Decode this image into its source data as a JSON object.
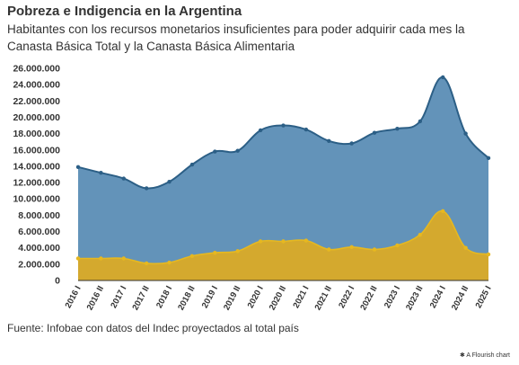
{
  "title": "Pobreza e Indigencia en la Argentina",
  "subtitle": "Habitantes con los recursos monetarios insuficientes para poder adquirir cada mes la Canasta Básica Total y la Canasta Básica Alimentaria",
  "source": "Fuente: Infobae con datos del Indec proyectados al total país",
  "credit": "✱ A Flourish chart",
  "colors": {
    "pobreza_fill": "#5b8db5",
    "pobreza_line": "#2c5f86",
    "indigencia_fill": "#d4a92e",
    "indigencia_line": "#e6b820",
    "axis": "#333333"
  },
  "chart_data": {
    "type": "area",
    "categories": [
      "2016 I",
      "2016 II",
      "2017 I",
      "2017 II",
      "2018 I",
      "2018 II",
      "2019 I",
      "2019 II",
      "2020 I",
      "2020 II",
      "2021 I",
      "2021 II",
      "2022 I",
      "2022 II",
      "2023 I",
      "2023 II",
      "2024 I",
      "2024 II",
      "2025 I"
    ],
    "series": [
      {
        "name": "",
        "values": [
          13900000,
          13200000,
          12500000,
          11300000,
          12100000,
          14200000,
          15800000,
          15900000,
          18400000,
          19000000,
          18500000,
          17100000,
          16800000,
          18100000,
          18600000,
          19500000,
          24900000,
          18000000,
          15000000
        ]
      },
      {
        "name": "",
        "values": [
          2700000,
          2700000,
          2700000,
          2100000,
          2200000,
          3000000,
          3400000,
          3600000,
          4800000,
          4800000,
          4900000,
          3800000,
          4100000,
          3800000,
          4300000,
          5600000,
          8500000,
          4000000,
          3200000
        ]
      }
    ],
    "ylim": [
      0,
      26000000
    ],
    "yticks": [
      "0",
      "2.000.000",
      "4.000.000",
      "6.000.000",
      "8.000.000",
      "10.000.000",
      "12.000.000",
      "14.000.000",
      "16.000.000",
      "18.000.000",
      "20.000.000",
      "22.000.000",
      "24.000.000",
      "26.000.000"
    ],
    "xlabel": "",
    "ylabel": "",
    "grid": false,
    "legend": "none"
  }
}
